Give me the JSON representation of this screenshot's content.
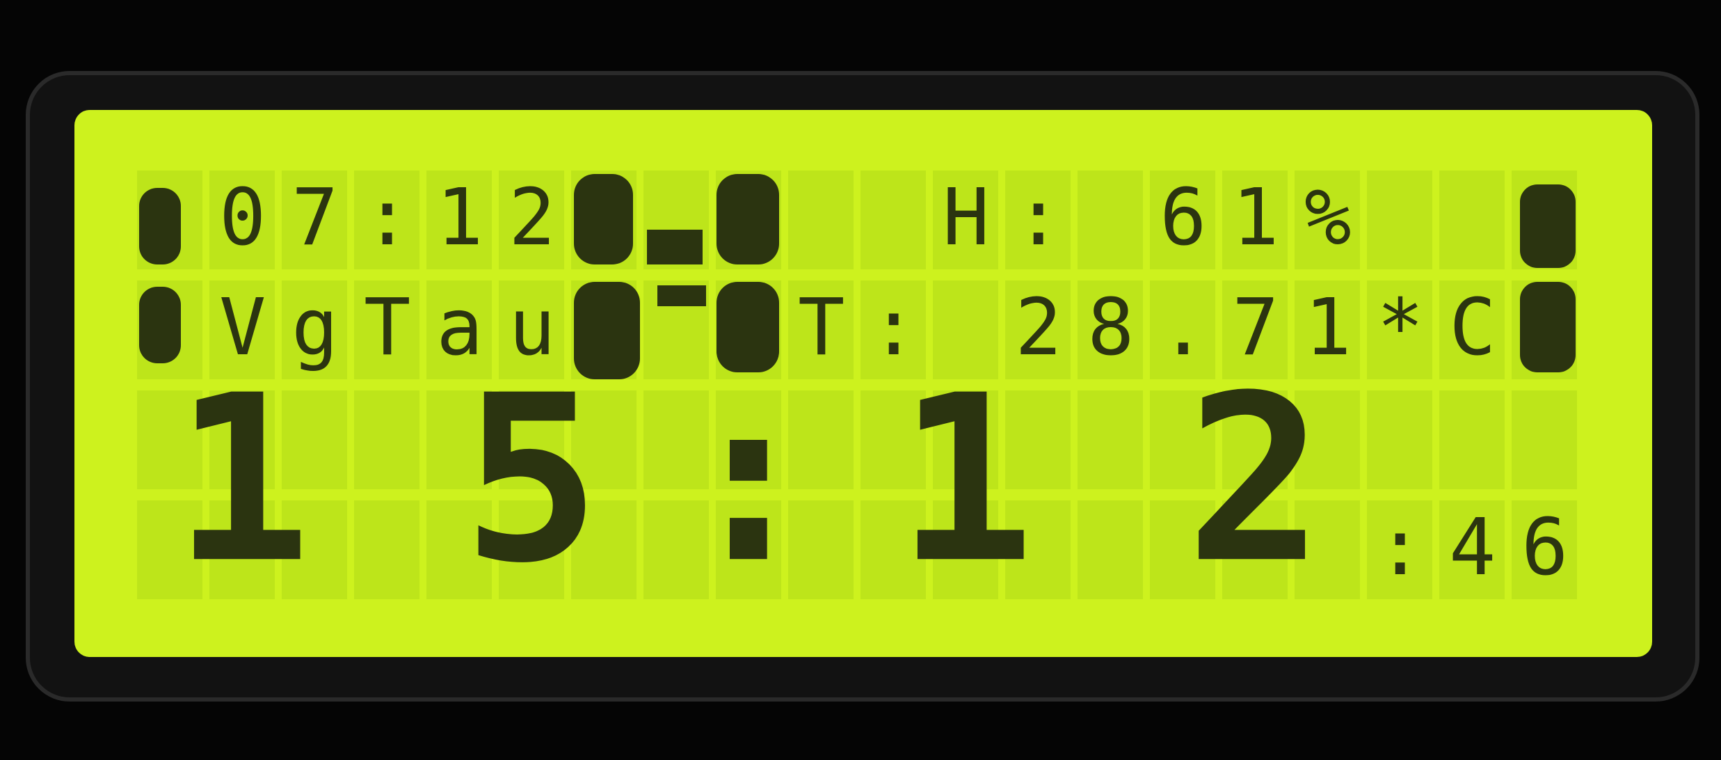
{
  "display": {
    "rows": [
      [
        {
          "col": 1,
          "text": "07:12"
        },
        {
          "col": 11,
          "text": "H: 61%"
        }
      ],
      [
        {
          "col": 1,
          "text": "VgTau"
        },
        {
          "col": 9,
          "text": "T: 28.71*C"
        }
      ],
      [],
      [
        {
          "col": 17,
          "text": ":46"
        }
      ]
    ],
    "big_time": [
      {
        "col": 0,
        "text": "1"
      },
      {
        "col": 4,
        "text": "5"
      },
      {
        "col": 8,
        "text": ":"
      },
      {
        "col": 10,
        "text": "1"
      },
      {
        "col": 14,
        "text": "2"
      }
    ]
  }
}
